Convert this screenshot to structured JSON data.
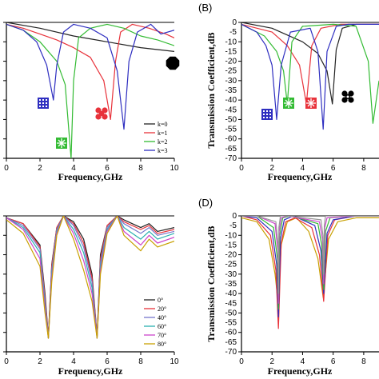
{
  "chart_data": [
    {
      "panel": "",
      "type": "line",
      "xlabel": "Frequency,GHz",
      "ylabel": "",
      "xlim": [
        0,
        10
      ],
      "ylim": [
        -70,
        0
      ],
      "xticks": [
        0,
        2,
        4,
        6,
        8,
        10
      ],
      "yticks": [],
      "legend_position": "bottom-right",
      "series": [
        {
          "name": "k=0",
          "color": "#222222",
          "x": [
            0,
            2,
            4,
            6,
            8,
            10
          ],
          "y": [
            0,
            -3,
            -7,
            -10,
            -13,
            -15
          ]
        },
        {
          "name": "k=1",
          "color": "#e8323a",
          "x": [
            0,
            1,
            2,
            3,
            4,
            5,
            5.8,
            6.2,
            6.5,
            6.8,
            7.5,
            8.5,
            9.5,
            10
          ],
          "y": [
            -1,
            -3,
            -6,
            -9,
            -13,
            -18,
            -30,
            -50,
            -20,
            -5,
            -1,
            -3,
            -6,
            -8
          ]
        },
        {
          "name": "k=2",
          "color": "#33bb33",
          "x": [
            0,
            1,
            2,
            3,
            3.5,
            3.85,
            4.0,
            4.3,
            5,
            6,
            7,
            8,
            9,
            10
          ],
          "y": [
            -1,
            -4,
            -10,
            -20,
            -32,
            -70,
            -30,
            -8,
            -3,
            -1,
            -3,
            -7,
            -9,
            -12
          ]
        },
        {
          "name": "k=3",
          "color": "#2e2ec0",
          "x": [
            0,
            1,
            1.8,
            2.4,
            2.8,
            3.0,
            3.4,
            4,
            5,
            6,
            6.6,
            7.0,
            7.3,
            7.8,
            8.6,
            9.2,
            10
          ],
          "y": [
            -1,
            -4,
            -10,
            -22,
            -40,
            -22,
            -5,
            -1,
            -3,
            -8,
            -25,
            -55,
            -20,
            -5,
            -1,
            -6,
            -4
          ]
        }
      ]
    },
    {
      "panel": "(B)",
      "type": "line",
      "xlabel": "Frequency,GHz",
      "ylabel": "Transmission Coefficient,dB",
      "xlim": [
        0,
        9
      ],
      "ylim": [
        -70,
        0
      ],
      "xticks": [
        0,
        2,
        4,
        6,
        8
      ],
      "yticks": [
        0,
        -5,
        -10,
        -15,
        -20,
        -25,
        -30,
        -35,
        -40,
        -45,
        -50,
        -55,
        -60,
        -65,
        -70
      ],
      "series": [
        {
          "color": "#222222",
          "x": [
            0,
            2,
            4,
            5,
            5.6,
            5.95,
            6.2,
            6.6,
            7.5,
            9
          ],
          "y": [
            0,
            -3,
            -10,
            -16,
            -25,
            -42,
            -14,
            -3,
            -1,
            -1
          ]
        },
        {
          "color": "#e8323a",
          "x": [
            0,
            2,
            3,
            3.8,
            4.25,
            4.6,
            5.2,
            6.5,
            9
          ],
          "y": [
            -1,
            -5,
            -12,
            -22,
            -42,
            -12,
            -3,
            -1,
            -1
          ]
        },
        {
          "color": "#33bb33",
          "x": [
            0,
            1.5,
            2.3,
            2.75,
            3.0,
            3.3,
            4,
            6,
            7.5,
            8.3,
            8.6,
            9
          ],
          "y": [
            -1,
            -7,
            -15,
            -25,
            -42,
            -10,
            -2,
            -1,
            -2,
            -20,
            -52,
            -30
          ]
        },
        {
          "color": "#2e2ec0",
          "x": [
            0,
            1,
            1.6,
            2.0,
            2.3,
            2.6,
            3.2,
            4.5,
            5.0,
            5.35,
            5.6,
            6.2,
            7,
            9
          ],
          "y": [
            -1,
            -5,
            -12,
            -22,
            -50,
            -22,
            -5,
            -3,
            -15,
            -55,
            -15,
            -2,
            -1,
            -1
          ]
        }
      ]
    },
    {
      "panel": "",
      "type": "line",
      "xlabel": "Frequency,GHz",
      "ylabel": "",
      "xlim": [
        0,
        10
      ],
      "ylim": [
        -70,
        0
      ],
      "xticks": [
        0,
        2,
        4,
        6,
        8,
        10
      ],
      "yticks": [],
      "legend_position": "bottom-right",
      "series": [
        {
          "name": "0°",
          "color": "#222222",
          "x": [
            0,
            1,
            2,
            2.3,
            2.5,
            2.7,
            3,
            3.4,
            4,
            4.6,
            5.1,
            5.4,
            5.6,
            6,
            6.6,
            7,
            8,
            8.5,
            9,
            10
          ],
          "y": [
            -1,
            -4,
            -15,
            -40,
            -62,
            -25,
            -6,
            0,
            -3,
            -12,
            -30,
            -62,
            -20,
            -5,
            0,
            -2,
            -6,
            -4,
            -8,
            -6
          ]
        },
        {
          "name": "20°",
          "color": "#e8323a",
          "x": [
            0,
            1,
            2,
            2.3,
            2.5,
            2.7,
            3,
            3.4,
            4,
            4.6,
            5.1,
            5.4,
            5.6,
            6,
            6.6,
            7,
            8,
            8.5,
            9,
            10
          ],
          "y": [
            -1,
            -4,
            -16,
            -42,
            -62,
            -26,
            -6,
            0,
            -4,
            -14,
            -32,
            -62,
            -22,
            -5,
            0,
            -3,
            -7,
            -5,
            -9,
            -7
          ]
        },
        {
          "name": "40°",
          "color": "#7777cc",
          "x": [
            0,
            1,
            2,
            2.3,
            2.5,
            2.7,
            3,
            3.4,
            4,
            4.6,
            5.1,
            5.4,
            5.6,
            6,
            6.6,
            7,
            8,
            8.5,
            9,
            10
          ],
          "y": [
            -1,
            -5,
            -17,
            -44,
            -63,
            -28,
            -7,
            0,
            -5,
            -16,
            -34,
            -63,
            -24,
            -6,
            0,
            -4,
            -9,
            -6,
            -10,
            -8
          ]
        },
        {
          "name": "60°",
          "color": "#2bb0b0",
          "x": [
            0,
            1,
            2,
            2.3,
            2.5,
            2.7,
            3,
            3.4,
            4,
            4.6,
            5.1,
            5.4,
            5.6,
            6,
            6.6,
            7,
            8,
            8.5,
            9,
            10
          ],
          "y": [
            -1,
            -6,
            -19,
            -46,
            -63,
            -30,
            -8,
            0,
            -7,
            -19,
            -37,
            -63,
            -26,
            -7,
            0,
            -6,
            -12,
            -8,
            -12,
            -9
          ]
        },
        {
          "name": "70°",
          "color": "#cc44cc",
          "x": [
            0,
            1,
            2,
            2.3,
            2.5,
            2.7,
            3,
            3.4,
            4,
            4.6,
            5.1,
            5.4,
            5.6,
            6,
            6.6,
            7,
            8,
            8.5,
            9,
            10
          ],
          "y": [
            -1,
            -7,
            -22,
            -48,
            -63,
            -32,
            -9,
            0,
            -9,
            -23,
            -40,
            -63,
            -28,
            -8,
            0,
            -8,
            -15,
            -10,
            -14,
            -11
          ]
        },
        {
          "name": "80°",
          "color": "#c8a000",
          "x": [
            0,
            1,
            2,
            2.3,
            2.5,
            2.7,
            3,
            3.4,
            4,
            4.6,
            5.1,
            5.4,
            5.6,
            6,
            6.6,
            7,
            8,
            8.5,
            9,
            10
          ],
          "y": [
            -2,
            -9,
            -26,
            -50,
            -63,
            -34,
            -10,
            0,
            -12,
            -28,
            -44,
            -63,
            -30,
            -9,
            0,
            -10,
            -18,
            -12,
            -16,
            -13
          ]
        }
      ]
    },
    {
      "panel": "(D)",
      "type": "line",
      "xlabel": "Frequency,GHz",
      "ylabel": "Transmission Coefficient,dB",
      "xlim": [
        0,
        9
      ],
      "ylim": [
        -70,
        0
      ],
      "xticks": [
        0,
        2,
        4,
        6,
        8
      ],
      "yticks": [
        0,
        -5,
        -10,
        -15,
        -20,
        -25,
        -30,
        -35,
        -40,
        -45,
        -50,
        -55,
        -60,
        -65,
        -70
      ],
      "series": [
        {
          "color": "#c8a000",
          "x": [
            0,
            1,
            1.8,
            2.2,
            2.4,
            2.6,
            3.0,
            3.6,
            4.4,
            5.0,
            5.35,
            5.7,
            6.3,
            7.5,
            9
          ],
          "y": [
            -1,
            -3,
            -12,
            -30,
            -45,
            -15,
            -3,
            -1,
            -8,
            -22,
            -42,
            -12,
            -3,
            -1,
            -1
          ]
        },
        {
          "color": "#e8323a",
          "x": [
            0,
            1,
            1.9,
            2.25,
            2.42,
            2.6,
            2.9,
            3.5,
            4.6,
            5.1,
            5.38,
            5.65,
            6.1,
            7.5,
            9
          ],
          "y": [
            0,
            -2,
            -10,
            -28,
            -58,
            -14,
            -3,
            -1,
            -6,
            -20,
            -44,
            -10,
            -2,
            0,
            0
          ]
        },
        {
          "color": "#2e2ec0",
          "x": [
            0,
            1,
            2.0,
            2.3,
            2.42,
            2.55,
            2.8,
            3.4,
            4.8,
            5.2,
            5.38,
            5.6,
            6.0,
            7.5,
            9
          ],
          "y": [
            0,
            -1,
            -8,
            -25,
            -52,
            -12,
            -2,
            0,
            -5,
            -18,
            -40,
            -9,
            -2,
            0,
            0
          ]
        },
        {
          "color": "#33bb33",
          "x": [
            0,
            1,
            2.1,
            2.35,
            2.42,
            2.5,
            2.7,
            3.2,
            5.0,
            5.25,
            5.38,
            5.5,
            5.8,
            7.5,
            9
          ],
          "y": [
            0,
            0,
            -6,
            -22,
            -48,
            -10,
            -1,
            0,
            -4,
            -15,
            -38,
            -8,
            -1,
            0,
            0
          ]
        },
        {
          "color": "#cc44cc",
          "x": [
            0,
            1,
            2.2,
            2.38,
            2.42,
            2.47,
            2.6,
            3.0,
            5.1,
            5.3,
            5.38,
            5.45,
            5.6,
            7.5,
            9
          ],
          "y": [
            0,
            0,
            -4,
            -18,
            -45,
            -8,
            -1,
            0,
            -3,
            -12,
            -35,
            -6,
            -1,
            0,
            0
          ]
        },
        {
          "color": "#999999",
          "x": [
            0,
            1,
            2.25,
            2.4,
            2.42,
            2.45,
            2.55,
            3.0,
            5.2,
            5.33,
            5.38,
            5.42,
            5.5,
            7.5,
            9
          ],
          "y": [
            0,
            0,
            -3,
            -15,
            -40,
            -6,
            0,
            0,
            -2,
            -10,
            -30,
            -5,
            0,
            0,
            0
          ]
        }
      ]
    }
  ],
  "panel_a_markers": [
    {
      "name": "square-pattern-icon",
      "color": "#2e2ec0"
    },
    {
      "name": "cross-pattern-icon",
      "color": "#33bb33"
    },
    {
      "name": "clover-icon",
      "color": "#e8323a"
    },
    {
      "name": "octagon-icon",
      "color": "#000000"
    }
  ],
  "panel_b_markers": [
    {
      "name": "square-pattern-icon",
      "color": "#2e2ec0"
    },
    {
      "name": "cross-pattern-icon",
      "color": "#33bb33"
    },
    {
      "name": "cross-pattern-icon",
      "color": "#e8323a"
    },
    {
      "name": "clover-icon",
      "color": "#000000"
    }
  ]
}
